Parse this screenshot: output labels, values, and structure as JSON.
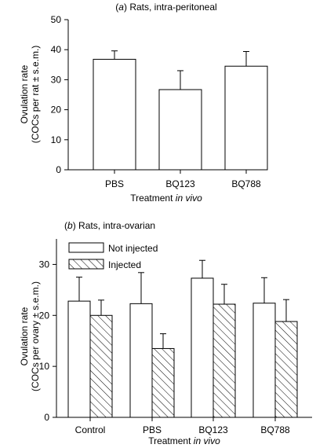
{
  "chart_data": [
    {
      "type": "bar",
      "panel_label": "a",
      "title": "Rats, intra-peritoneal",
      "ylabel_line1": "Ovulation rate",
      "ylabel_line2": "(COCs per rat ± s.e.m.)",
      "xlabel_prefix": "Treatment ",
      "xlabel_italic": "in vivo",
      "ylim": [
        0,
        50
      ],
      "yticks": [
        0,
        10,
        20,
        30,
        40,
        50
      ],
      "categories": [
        "PBS",
        "BQ123",
        "BQ788"
      ],
      "values": [
        36.8,
        26.7,
        34.5
      ],
      "errors": [
        2.8,
        6.3,
        4.9
      ]
    },
    {
      "type": "bar",
      "panel_label": "b",
      "title": "Rats, intra-ovarian",
      "ylabel_line1": "Ovulation rate",
      "ylabel_line2": "(COCs per ovary ± s.e.m.)",
      "xlabel_prefix": "Treatment ",
      "xlabel_italic": "in vivo",
      "ylim": [
        0,
        35
      ],
      "yticks": [
        0,
        10,
        20,
        30
      ],
      "categories": [
        "Control",
        "PBS",
        "BQ123",
        "BQ788"
      ],
      "series": [
        {
          "name": "Not injected",
          "pattern": "open",
          "values": [
            22.8,
            22.3,
            27.3,
            22.4
          ],
          "errors": [
            4.7,
            6.1,
            3.5,
            5.0
          ]
        },
        {
          "name": "Injected",
          "pattern": "hatched",
          "values": [
            20.0,
            13.5,
            22.2,
            18.8
          ],
          "errors": [
            3.0,
            2.9,
            3.9,
            4.3
          ]
        }
      ],
      "legend_position": "top-left"
    }
  ]
}
